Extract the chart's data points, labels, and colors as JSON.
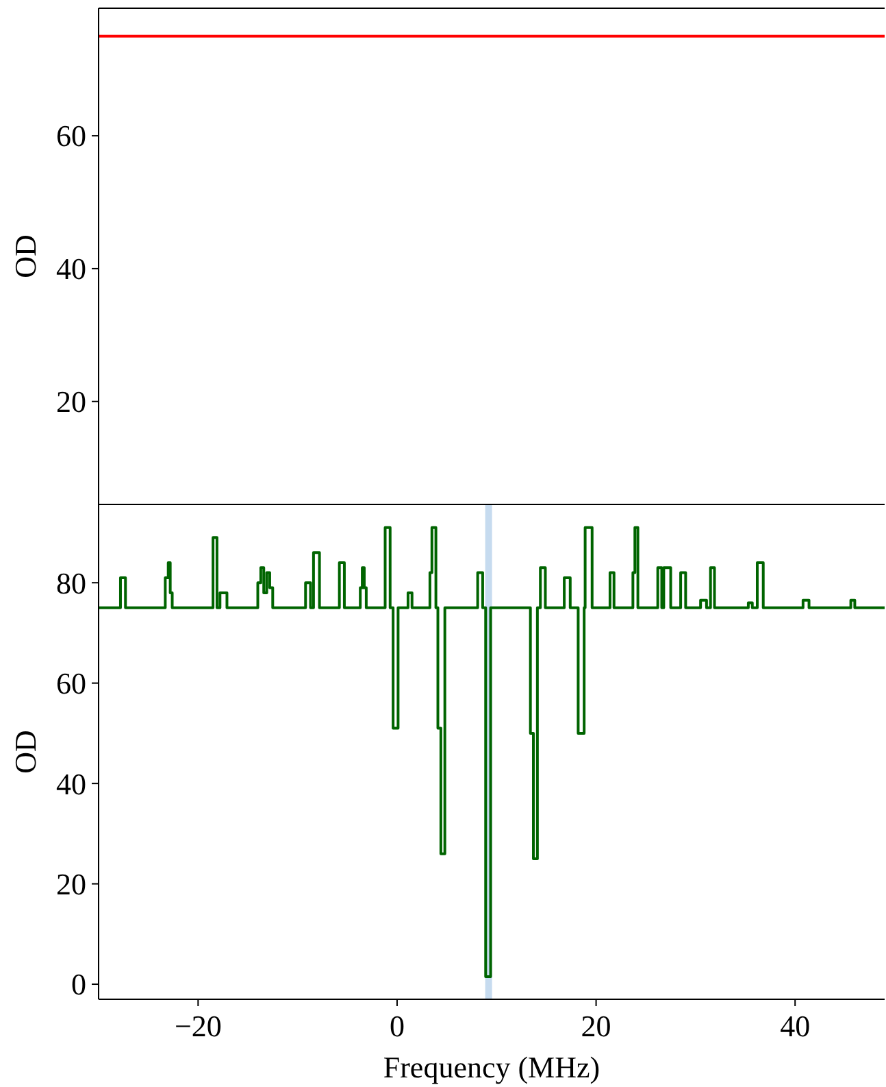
{
  "chart_data": [
    {
      "type": "line",
      "ylabel": "OD",
      "xlim": [
        -30,
        49
      ],
      "ylim": [
        4.5,
        79.2
      ],
      "yticks": [
        20,
        40,
        60
      ],
      "tick_labels": "y",
      "series": [
        {
          "color": "#ff0000",
          "x": [
            -30,
            49
          ],
          "values": [
            75,
            75
          ]
        }
      ]
    },
    {
      "type": "step",
      "xlabel": "Frequency (MHz)",
      "ylabel": "OD",
      "xlim": [
        -30,
        49
      ],
      "ylim": [
        -3,
        95.6
      ],
      "xticks": [
        -20,
        0,
        20,
        40
      ],
      "yticks": [
        0,
        20,
        40,
        60,
        80
      ],
      "ref_lines": [
        {
          "axis": "x",
          "value": 9.2,
          "color": "#c6dbef"
        }
      ],
      "series": [
        {
          "color": "#006400",
          "x": [
            -30,
            -27.8,
            -27.3,
            -23.3,
            -23.0,
            -22.8,
            -22.6,
            -18.5,
            -18.1,
            -17.8,
            -17.1,
            -14.0,
            -13.7,
            -13.4,
            -13.1,
            -12.8,
            -12.5,
            -9.2,
            -8.7,
            -8.4,
            -7.8,
            -5.8,
            -5.3,
            -3.7,
            -3.5,
            -3.3,
            -3.1,
            -1.2,
            -0.7,
            -0.4,
            0.1,
            1.1,
            1.5,
            3.3,
            3.5,
            3.9,
            4.1,
            4.4,
            4.8,
            8.1,
            8.6,
            8.9,
            9.4,
            13.4,
            13.7,
            14.1,
            14.4,
            14.9,
            16.8,
            17.4,
            18.2,
            18.8,
            18.9,
            19.6,
            21.4,
            21.8,
            23.7,
            23.9,
            24.2,
            26.2,
            26.6,
            26.8,
            27.5,
            28.5,
            29.0,
            30.5,
            31.1,
            31.5,
            31.9,
            35.3,
            35.7,
            36.2,
            36.8,
            40.8,
            41.4,
            45.6,
            46.0,
            49
          ],
          "values": [
            75,
            81,
            75,
            81,
            84,
            78,
            75,
            89,
            75,
            78,
            75,
            80,
            83,
            78,
            82,
            79,
            75,
            80,
            75,
            86,
            75,
            84,
            75,
            79,
            83,
            79,
            75,
            91,
            75,
            51,
            75,
            78,
            75,
            82,
            91,
            75,
            51,
            26,
            75,
            82,
            75,
            1.5,
            75,
            50,
            25,
            75,
            83,
            75,
            81,
            75,
            50,
            75,
            91,
            75,
            82,
            75,
            82,
            91,
            75,
            83,
            75,
            83,
            75,
            82,
            75,
            76.5,
            75,
            83,
            75,
            76,
            75,
            84,
            75,
            76.5,
            75,
            76.5,
            75,
            75
          ]
        }
      ]
    }
  ]
}
